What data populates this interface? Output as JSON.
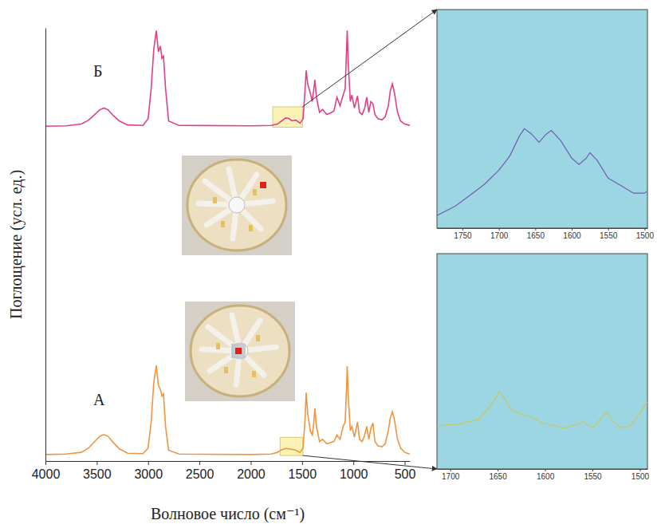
{
  "chart_data": [
    {
      "type": "line",
      "x_label": "Волновое число (см⁻¹)",
      "y_label": "Поглощение (усл. ед.)",
      "x": [
        4000,
        3800,
        3650,
        3580,
        3520,
        3470,
        3430,
        3390,
        3340,
        3280,
        3200,
        3050,
        3000,
        2970,
        2945,
        2920,
        2900,
        2880,
        2865,
        2850,
        2830,
        2800,
        2700,
        2000,
        1800,
        1740,
        1700,
        1660,
        1630,
        1600,
        1560,
        1520,
        1490,
        1470,
        1460,
        1445,
        1420,
        1400,
        1385,
        1375,
        1360,
        1330,
        1300,
        1260,
        1230,
        1190,
        1160,
        1130,
        1100,
        1080,
        1065,
        1060,
        1050,
        1030,
        1015,
        990,
        960,
        940,
        915,
        890,
        870,
        850,
        830,
        810,
        790,
        760,
        720,
        690,
        660,
        640,
        620,
        600,
        570,
        540,
        500,
        450
      ],
      "series": [
        {
          "name": "Б",
          "color": "#e0408a",
          "values": [
            0.773,
            0.774,
            0.778,
            0.787,
            0.8,
            0.811,
            0.815,
            0.811,
            0.798,
            0.785,
            0.776,
            0.775,
            0.79,
            0.86,
            0.95,
            0.994,
            0.945,
            0.958,
            0.93,
            0.935,
            0.86,
            0.785,
            0.775,
            0.774,
            0.775,
            0.778,
            0.785,
            0.792,
            0.791,
            0.786,
            0.787,
            0.78,
            0.79,
            0.86,
            0.902,
            0.87,
            0.85,
            0.83,
            0.86,
            0.88,
            0.84,
            0.805,
            0.812,
            0.8,
            0.803,
            0.808,
            0.84,
            0.82,
            0.845,
            0.86,
            0.96,
            0.994,
            0.92,
            0.83,
            0.845,
            0.815,
            0.843,
            0.805,
            0.8,
            0.815,
            0.84,
            0.805,
            0.83,
            0.825,
            0.8,
            0.79,
            0.788,
            0.795,
            0.82,
            0.855,
            0.871,
            0.85,
            0.805,
            0.785,
            0.778,
            0.775
          ]
        },
        {
          "name": "А",
          "color": "#f0953f",
          "values": [
            0.015,
            0.016,
            0.02,
            0.03,
            0.045,
            0.057,
            0.061,
            0.057,
            0.043,
            0.028,
            0.018,
            0.017,
            0.03,
            0.09,
            0.18,
            0.221,
            0.175,
            0.165,
            0.15,
            0.155,
            0.08,
            0.025,
            0.016,
            0.015,
            0.016,
            0.02,
            0.026,
            0.029,
            0.028,
            0.027,
            0.025,
            0.02,
            0.03,
            0.1,
            0.158,
            0.11,
            0.07,
            0.06,
            0.09,
            0.122,
            0.08,
            0.045,
            0.05,
            0.04,
            0.042,
            0.045,
            0.06,
            0.05,
            0.08,
            0.09,
            0.18,
            0.219,
            0.15,
            0.07,
            0.08,
            0.055,
            0.09,
            0.05,
            0.045,
            0.06,
            0.08,
            0.05,
            0.075,
            0.088,
            0.045,
            0.035,
            0.033,
            0.04,
            0.07,
            0.1,
            0.114,
            0.095,
            0.05,
            0.03,
            0.02,
            0.016
          ]
        }
      ],
      "xlim": [
        4000,
        450
      ],
      "ylim": [
        0,
        1
      ],
      "xticks": [
        4000,
        3500,
        3000,
        2500,
        2000,
        1500,
        1000,
        500
      ],
      "tick_labels": "x"
    },
    {
      "type": "line",
      "x": [
        1785,
        1760,
        1740,
        1720,
        1700,
        1685,
        1672,
        1665,
        1655,
        1645,
        1635,
        1628,
        1615,
        1600,
        1590,
        1580,
        1575,
        1565,
        1550,
        1530,
        1515,
        1500,
        1496
      ],
      "series": [
        {
          "color": "#6f5fb0",
          "values": [
            0.058,
            0.1,
            0.15,
            0.2,
            0.265,
            0.33,
            0.42,
            0.455,
            0.43,
            0.393,
            0.43,
            0.447,
            0.4,
            0.32,
            0.291,
            0.32,
            0.345,
            0.31,
            0.229,
            0.19,
            0.16,
            0.16,
            0.17
          ]
        }
      ],
      "xlim": [
        1785,
        1496
      ],
      "ylim": [
        0,
        1
      ],
      "xticks": [
        1750,
        1700,
        1650,
        1600,
        1550,
        1500
      ],
      "tick_labels": "x"
    },
    {
      "type": "line",
      "x": [
        1714,
        1690,
        1670,
        1660,
        1652,
        1648,
        1643,
        1635,
        1620,
        1600,
        1580,
        1565,
        1560,
        1550,
        1540,
        1535,
        1528,
        1520,
        1510,
        1500,
        1492
      ],
      "series": [
        {
          "color": "#c9c75a",
          "values": [
            0.2,
            0.21,
            0.23,
            0.28,
            0.33,
            0.36,
            0.33,
            0.27,
            0.25,
            0.21,
            0.19,
            0.21,
            0.22,
            0.19,
            0.24,
            0.265,
            0.22,
            0.191,
            0.2,
            0.26,
            0.313
          ]
        }
      ],
      "xlim": [
        1714,
        1492
      ],
      "ylim": [
        0,
        1
      ],
      "xticks": [
        1700,
        1650,
        1600,
        1550,
        1500
      ],
      "tick_labels": "x"
    }
  ]
}
